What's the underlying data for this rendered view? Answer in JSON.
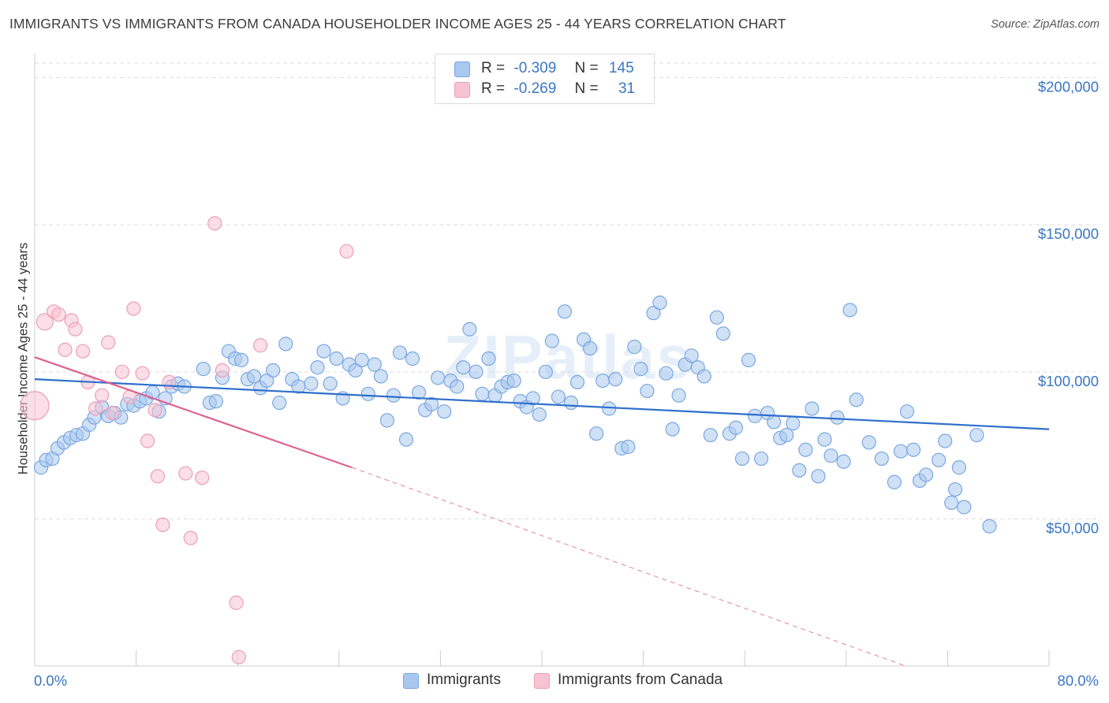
{
  "header": {
    "title": "IMMIGRANTS VS IMMIGRANTS FROM CANADA HOUSEHOLDER INCOME AGES 25 - 44 YEARS CORRELATION CHART",
    "source": "Source: ZipAtlas.com"
  },
  "watermark": "ZIPatlas",
  "legend_top": {
    "rows": [
      {
        "r_label": "R =",
        "r_value": "-0.309",
        "n_label": "N =",
        "n_value": "145"
      },
      {
        "r_label": "R =",
        "r_value": "-0.269",
        "n_label": "N =",
        "n_value": "31"
      }
    ]
  },
  "legend_bottom": {
    "items": [
      {
        "label": "Immigrants"
      },
      {
        "label": "Immigrants from Canada"
      }
    ]
  },
  "colors": {
    "blue_fill": "#a9c8ef",
    "blue_stroke": "#7aa7e0",
    "blue_line": "#2e6fcc",
    "pink_fill": "#f7c3d3",
    "pink_stroke": "#ec9fb8",
    "pink_line": "#e0618f",
    "tick_text": "#3a76c4",
    "grid": "#dddddd"
  },
  "chart_data": {
    "type": "scatter",
    "title": "IMMIGRANTS VS IMMIGRANTS FROM CANADA HOUSEHOLDER INCOME AGES 25 - 44 YEARS CORRELATION CHART",
    "xlabel": "",
    "ylabel": "Householder Income Ages 25 - 44 years",
    "xlim": [
      0,
      80
    ],
    "ylim": [
      0,
      205000
    ],
    "x_tick_labels": [
      "0.0%",
      "80.0%"
    ],
    "y_ticks": [
      50000,
      100000,
      150000,
      200000
    ],
    "y_tick_labels": [
      "$50,000",
      "$100,000",
      "$150,000",
      "$200,000"
    ],
    "grid": true,
    "legend_position": "top-center",
    "series": [
      {
        "name": "Immigrants",
        "trend": {
          "x0": 0,
          "y0": 97500,
          "x1": 80,
          "y1": 80500
        },
        "points": [
          [
            0.5,
            67500
          ],
          [
            0.9,
            70000
          ],
          [
            1.4,
            70500
          ],
          [
            1.8,
            74000
          ],
          [
            2.3,
            76000
          ],
          [
            2.8,
            77500
          ],
          [
            3.3,
            78500
          ],
          [
            3.8,
            79000
          ],
          [
            4.3,
            82000
          ],
          [
            4.7,
            84500
          ],
          [
            5.3,
            88000
          ],
          [
            5.8,
            85000
          ],
          [
            6.3,
            86000
          ],
          [
            6.8,
            84500
          ],
          [
            7.3,
            89000
          ],
          [
            7.8,
            88500
          ],
          [
            8.3,
            90000
          ],
          [
            8.8,
            91000
          ],
          [
            9.3,
            93000
          ],
          [
            9.8,
            86500
          ],
          [
            10.3,
            91000
          ],
          [
            10.8,
            95000
          ],
          [
            11.3,
            96000
          ],
          [
            11.8,
            95000
          ],
          [
            13.3,
            101000
          ],
          [
            13.8,
            89500
          ],
          [
            14.3,
            90000
          ],
          [
            14.8,
            98000
          ],
          [
            15.3,
            107000
          ],
          [
            15.8,
            104500
          ],
          [
            16.3,
            104000
          ],
          [
            16.8,
            97500
          ],
          [
            17.3,
            98500
          ],
          [
            17.8,
            94500
          ],
          [
            18.3,
            97000
          ],
          [
            18.8,
            100500
          ],
          [
            19.3,
            89500
          ],
          [
            19.8,
            109500
          ],
          [
            20.3,
            97500
          ],
          [
            20.8,
            95000
          ],
          [
            21.8,
            96000
          ],
          [
            22.3,
            101500
          ],
          [
            22.8,
            107000
          ],
          [
            23.3,
            96000
          ],
          [
            23.8,
            104500
          ],
          [
            24.3,
            91000
          ],
          [
            24.8,
            102500
          ],
          [
            25.3,
            100500
          ],
          [
            25.8,
            104000
          ],
          [
            26.3,
            92500
          ],
          [
            26.8,
            102500
          ],
          [
            27.3,
            98500
          ],
          [
            27.8,
            83500
          ],
          [
            28.3,
            92000
          ],
          [
            28.8,
            106500
          ],
          [
            29.3,
            77000
          ],
          [
            29.8,
            104500
          ],
          [
            30.3,
            93000
          ],
          [
            30.8,
            87000
          ],
          [
            31.3,
            89000
          ],
          [
            31.8,
            98000
          ],
          [
            32.3,
            86500
          ],
          [
            32.8,
            97000
          ],
          [
            33.3,
            95000
          ],
          [
            33.8,
            101500
          ],
          [
            34.3,
            114500
          ],
          [
            34.8,
            100000
          ],
          [
            35.3,
            92500
          ],
          [
            35.8,
            104500
          ],
          [
            36.3,
            92000
          ],
          [
            36.8,
            95000
          ],
          [
            37.3,
            96500
          ],
          [
            37.8,
            97000
          ],
          [
            38.3,
            90000
          ],
          [
            38.8,
            88000
          ],
          [
            39.3,
            91000
          ],
          [
            39.8,
            85500
          ],
          [
            40.3,
            100000
          ],
          [
            40.8,
            110500
          ],
          [
            41.3,
            91500
          ],
          [
            41.8,
            120500
          ],
          [
            42.3,
            89500
          ],
          [
            42.8,
            96500
          ],
          [
            43.3,
            111000
          ],
          [
            43.8,
            108000
          ],
          [
            44.3,
            79000
          ],
          [
            44.8,
            97000
          ],
          [
            45.3,
            87500
          ],
          [
            45.8,
            97500
          ],
          [
            46.3,
            74000
          ],
          [
            46.8,
            74500
          ],
          [
            47.3,
            108500
          ],
          [
            47.8,
            101000
          ],
          [
            48.3,
            93500
          ],
          [
            48.8,
            120000
          ],
          [
            49.3,
            123500
          ],
          [
            49.8,
            99500
          ],
          [
            50.3,
            80500
          ],
          [
            50.8,
            92000
          ],
          [
            51.3,
            102500
          ],
          [
            51.8,
            105500
          ],
          [
            52.3,
            101500
          ],
          [
            52.8,
            98500
          ],
          [
            53.3,
            78500
          ],
          [
            53.8,
            118500
          ],
          [
            54.3,
            113000
          ],
          [
            54.8,
            79000
          ],
          [
            55.3,
            81000
          ],
          [
            55.8,
            70500
          ],
          [
            56.3,
            104000
          ],
          [
            56.8,
            85000
          ],
          [
            57.3,
            70500
          ],
          [
            57.8,
            86000
          ],
          [
            58.3,
            83000
          ],
          [
            58.8,
            77500
          ],
          [
            59.3,
            78500
          ],
          [
            59.8,
            82500
          ],
          [
            60.3,
            66500
          ],
          [
            60.8,
            73500
          ],
          [
            61.3,
            87500
          ],
          [
            61.8,
            64500
          ],
          [
            62.3,
            77000
          ],
          [
            62.8,
            71500
          ],
          [
            63.3,
            84500
          ],
          [
            63.8,
            69500
          ],
          [
            64.3,
            121000
          ],
          [
            64.8,
            90500
          ],
          [
            65.8,
            76000
          ],
          [
            66.8,
            70500
          ],
          [
            67.8,
            62500
          ],
          [
            68.3,
            73000
          ],
          [
            68.8,
            86500
          ],
          [
            69.3,
            73500
          ],
          [
            69.8,
            63000
          ],
          [
            70.3,
            65000
          ],
          [
            71.3,
            70000
          ],
          [
            71.8,
            76500
          ],
          [
            72.3,
            55500
          ],
          [
            72.6,
            60000
          ],
          [
            72.9,
            67500
          ],
          [
            73.3,
            54000
          ],
          [
            74.3,
            78500
          ],
          [
            75.3,
            47500
          ]
        ]
      },
      {
        "name": "Immigrants from Canada",
        "trend": {
          "x0": 0,
          "y0": 105000,
          "x1": 25,
          "y1": 67500,
          "dashed_to": {
            "x": 80,
            "y": -17500
          }
        },
        "points": [
          [
            0.0,
            88500
          ],
          [
            0.8,
            117000
          ],
          [
            1.5,
            120500
          ],
          [
            1.9,
            119500
          ],
          [
            2.4,
            107500
          ],
          [
            2.9,
            117500
          ],
          [
            3.2,
            114500
          ],
          [
            3.8,
            107000
          ],
          [
            4.2,
            96500
          ],
          [
            4.8,
            87500
          ],
          [
            5.3,
            92000
          ],
          [
            5.8,
            110000
          ],
          [
            6.1,
            86000
          ],
          [
            6.9,
            100000
          ],
          [
            7.5,
            91500
          ],
          [
            7.8,
            121500
          ],
          [
            8.5,
            99500
          ],
          [
            8.9,
            76500
          ],
          [
            9.5,
            87000
          ],
          [
            9.7,
            64500
          ],
          [
            10.1,
            48000
          ],
          [
            10.6,
            96500
          ],
          [
            11.9,
            65500
          ],
          [
            12.3,
            43500
          ],
          [
            13.2,
            64000
          ],
          [
            14.2,
            150500
          ],
          [
            14.8,
            100500
          ],
          [
            15.9,
            21500
          ],
          [
            16.1,
            3000
          ],
          [
            17.8,
            109000
          ],
          [
            24.6,
            141000
          ]
        ]
      }
    ]
  }
}
